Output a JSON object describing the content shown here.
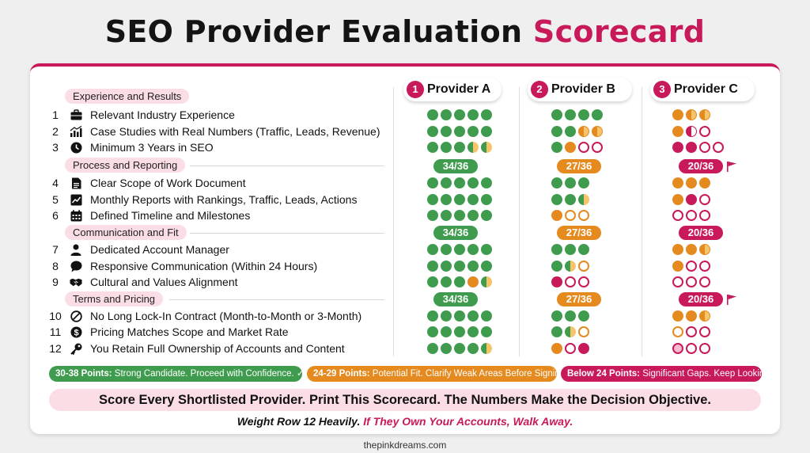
{
  "title": {
    "main": "SEO Provider Evaluation ",
    "accent": "Scorecard"
  },
  "providers": [
    {
      "num": "1",
      "name": "Provider A"
    },
    {
      "num": "2",
      "name": "Provider B"
    },
    {
      "num": "3",
      "name": "Provider C"
    }
  ],
  "sections": [
    {
      "title": "Experience and Results",
      "scores": [
        "34/36",
        "27/36",
        "20/36"
      ],
      "flag_c": true
    },
    {
      "title": "Process and Reporting",
      "scores": [
        "34/36",
        "27/36",
        "20/36"
      ],
      "flag_c": false
    },
    {
      "title": "Communication and Fit",
      "scores": [
        "34/36",
        "27/36",
        "20/36"
      ],
      "flag_c": true
    },
    {
      "title": "Terms and Pricing"
    }
  ],
  "criteria": [
    {
      "num": "1",
      "label": "Relevant Industry Experience",
      "icon": "briefcase-icon"
    },
    {
      "num": "2",
      "label": "Case Studies with Real Numbers (Traffic, Leads, Revenue)",
      "icon": "bar-chart-icon"
    },
    {
      "num": "3",
      "label": "Minimum 3 Years in SEO",
      "icon": "clock-icon"
    },
    {
      "num": "4",
      "label": "Clear Scope of Work Document",
      "icon": "document-icon"
    },
    {
      "num": "5",
      "label": "Monthly Reports with Rankings, Traffic, Leads, Actions",
      "icon": "line-chart-icon"
    },
    {
      "num": "6",
      "label": "Defined Timeline and Milestones",
      "icon": "calendar-icon"
    },
    {
      "num": "7",
      "label": "Dedicated Account Manager",
      "icon": "person-icon"
    },
    {
      "num": "8",
      "label": "Responsive Communication (Within 24 Hours)",
      "icon": "chat-bubble-icon"
    },
    {
      "num": "9",
      "label": "Cultural and Values Alignment",
      "icon": "handshake-icon"
    },
    {
      "num": "10",
      "label": "No Long Lock-In Contract (Month-to-Month or 3-Month)",
      "icon": "prohibited-icon"
    },
    {
      "num": "11",
      "label": "Pricing Matches Scope and Market Rate",
      "icon": "dollar-coin-icon"
    },
    {
      "num": "12",
      "label": "You Retain Full Ownership of Accounts and Content",
      "icon": "key-icon"
    }
  ],
  "ratings": {
    "A": [
      [
        "gf",
        "gf",
        "gf",
        "gf",
        "gf"
      ],
      [
        "gf",
        "gf",
        "gf",
        "gf",
        "gf"
      ],
      [
        "gf",
        "gf",
        "gf",
        "gh",
        "gh"
      ],
      [
        "gf",
        "gf",
        "gf",
        "gf",
        "gf"
      ],
      [
        "gf",
        "gf",
        "gf",
        "gf",
        "gf"
      ],
      [
        "gf",
        "gf",
        "gf",
        "gf",
        "gf"
      ],
      [
        "gf",
        "gf",
        "gf",
        "gf",
        "gf"
      ],
      [
        "gf",
        "gf",
        "gf",
        "gf",
        "gf"
      ],
      [
        "gf",
        "gf",
        "gf",
        "of",
        "gh"
      ],
      [
        "gf",
        "gf",
        "gf",
        "gf",
        "gf"
      ],
      [
        "gf",
        "gf",
        "gf",
        "gf",
        "gf"
      ],
      [
        "gf",
        "gf",
        "gf",
        "gf",
        "gh"
      ]
    ],
    "B": [
      [
        "gf",
        "gf",
        "gf",
        "gf"
      ],
      [
        "gf",
        "gf",
        "oh",
        "oh"
      ],
      [
        "gf",
        "of",
        "pe",
        "pe"
      ],
      [
        "gf",
        "gf",
        "gf"
      ],
      [
        "gf",
        "gf",
        "gh"
      ],
      [
        "of",
        "oe",
        "oe"
      ],
      [
        "gf",
        "gf",
        "gf"
      ],
      [
        "gf",
        "gh",
        "oe"
      ],
      [
        "pf",
        "pe",
        "pe"
      ],
      [
        "gf",
        "gf",
        "gf"
      ],
      [
        "gf",
        "gh",
        "oe"
      ],
      [
        "of",
        "pe",
        "pf"
      ]
    ],
    "C": [
      [
        "of",
        "oh",
        "oh"
      ],
      [
        "of",
        "ph",
        "pe"
      ],
      [
        "pf",
        "pf",
        "pe",
        "pe"
      ],
      [
        "of",
        "of",
        "of"
      ],
      [
        "of",
        "pf",
        "pe"
      ],
      [
        "pe",
        "pe",
        "pe"
      ],
      [
        "of",
        "of",
        "oh"
      ],
      [
        "of",
        "pe",
        "pe"
      ],
      [
        "pe",
        "pe",
        "pe"
      ],
      [
        "of",
        "of",
        "oh"
      ],
      [
        "oe",
        "pe",
        "pe"
      ],
      [
        "pef",
        "pe",
        "pe"
      ]
    ]
  },
  "legend": [
    {
      "points": "30-38 Points:",
      "text": " Strong Candidate. Proceed with Confidence. ✓",
      "color": "#3f9c4e"
    },
    {
      "points": "24-29 Points:",
      "text": " Potential Fit. Clarify Weak Areas Before Signing.",
      "color": "#e48a1e"
    },
    {
      "points": "Below 24 Points:",
      "text": " Significant Gaps. Keep Looking.",
      "color": "#c8195a"
    }
  ],
  "banner": "Score Every Shortlisted Provider. Print This Scorecard. The Numbers Make the Decision Objective.",
  "subline": {
    "main": "Weight Row 12 Heavily. ",
    "accent": "If They Own Your Accounts, Walk Away."
  },
  "footer": "thepinkdreams.com",
  "colors": {
    "green": "#3f9c4e",
    "orange": "#e48a1e",
    "pink": "#c8195a",
    "pink_light": "#fbdde6"
  }
}
